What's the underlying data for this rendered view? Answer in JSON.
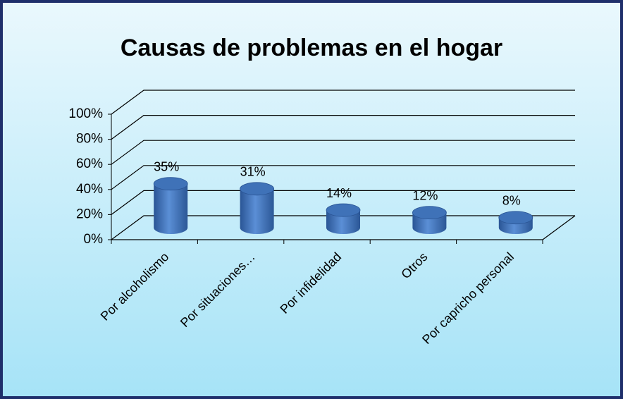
{
  "chart_data": {
    "type": "bar",
    "title": "Causas de problemas en el hogar",
    "categories": [
      "Por alcoholismo",
      "Por situaciones…",
      "Por infidelidad",
      "Otros",
      "Por capricho personal"
    ],
    "values": [
      35,
      31,
      14,
      12,
      8
    ],
    "value_labels": [
      "35%",
      "31%",
      "14%",
      "12%",
      "8%"
    ],
    "color": "#3f72b8",
    "ylim": [
      0,
      100
    ],
    "yticks": [
      {
        "value": 0,
        "label": "0%"
      },
      {
        "value": 20,
        "label": "20%"
      },
      {
        "value": 40,
        "label": "40%"
      },
      {
        "value": 60,
        "label": "60%"
      },
      {
        "value": 80,
        "label": "80%"
      },
      {
        "value": 100,
        "label": "100%"
      }
    ],
    "grid": true
  }
}
